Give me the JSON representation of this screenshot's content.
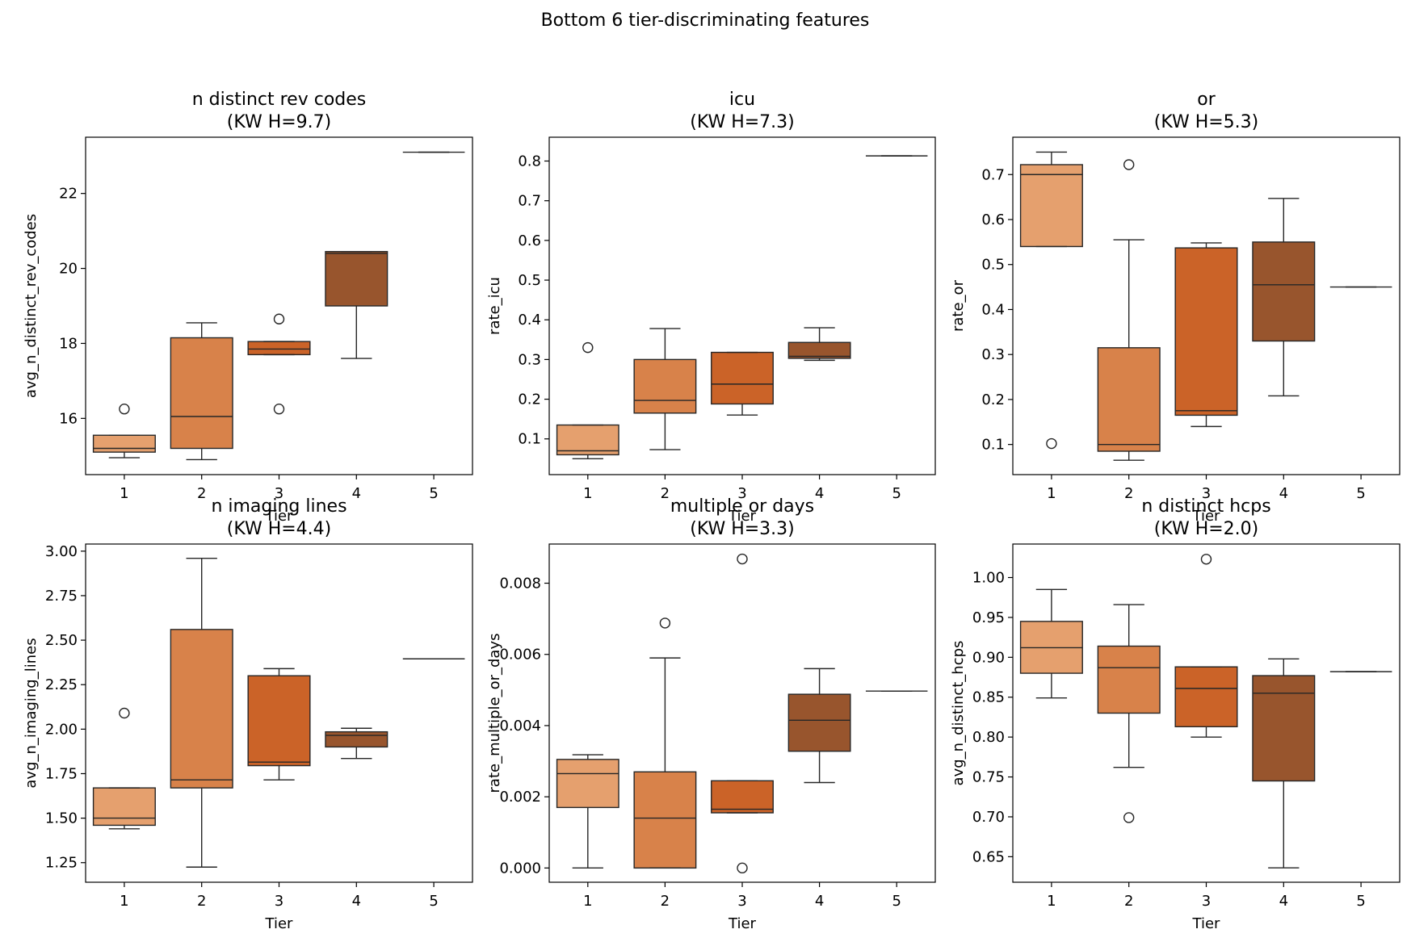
{
  "figure": {
    "suptitle": "Bottom 6 tier-discriminating features"
  },
  "colors": {
    "tiers": [
      "#e5a06e",
      "#d8824a",
      "#cb6328",
      "#98552d",
      "#98552d"
    ],
    "edge": "#262626"
  },
  "chart_data": [
    {
      "type": "box",
      "title_line1": "n distinct rev codes",
      "title_line2": "(KW H=9.7)",
      "xlabel": "Tier",
      "ylabel": "avg_n_distinct_rev_codes",
      "categories": [
        "1",
        "2",
        "3",
        "4",
        "5"
      ],
      "ylim": [
        14.5,
        23.5
      ],
      "yticks": [
        16,
        18,
        20,
        22
      ],
      "ytick_labels": [
        "16",
        "18",
        "20",
        "22"
      ],
      "boxes": [
        {
          "q1": 15.1,
          "median": 15.2,
          "q3": 15.55,
          "whislo": 14.95,
          "whishi": 15.55,
          "fliers": [
            16.25
          ]
        },
        {
          "q1": 15.2,
          "median": 16.05,
          "q3": 18.15,
          "whislo": 14.9,
          "whishi": 18.55,
          "fliers": []
        },
        {
          "q1": 17.7,
          "median": 17.85,
          "q3": 18.05,
          "whislo": 17.7,
          "whishi": 18.05,
          "fliers": [
            18.65,
            16.25
          ]
        },
        {
          "q1": 19.0,
          "median": 20.4,
          "q3": 20.45,
          "whislo": 17.6,
          "whishi": 20.45,
          "fliers": []
        },
        {
          "q1": 23.1,
          "median": 23.1,
          "q3": 23.1,
          "whislo": 23.1,
          "whishi": 23.1,
          "fliers": []
        }
      ]
    },
    {
      "type": "box",
      "title_line1": "icu",
      "title_line2": "(KW H=7.3)",
      "xlabel": "Tier",
      "ylabel": "rate_icu",
      "categories": [
        "1",
        "2",
        "3",
        "4",
        "5"
      ],
      "ylim": [
        0.01,
        0.86
      ],
      "yticks": [
        0.1,
        0.2,
        0.3,
        0.4,
        0.5,
        0.6,
        0.7,
        0.8
      ],
      "ytick_labels": [
        "0.1",
        "0.2",
        "0.3",
        "0.4",
        "0.5",
        "0.6",
        "0.7",
        "0.8"
      ],
      "boxes": [
        {
          "q1": 0.06,
          "median": 0.07,
          "q3": 0.135,
          "whislo": 0.05,
          "whishi": 0.135,
          "fliers": [
            0.33
          ]
        },
        {
          "q1": 0.165,
          "median": 0.197,
          "q3": 0.3,
          "whislo": 0.073,
          "whishi": 0.378,
          "fliers": []
        },
        {
          "q1": 0.188,
          "median": 0.238,
          "q3": 0.318,
          "whislo": 0.16,
          "whishi": 0.318,
          "fliers": []
        },
        {
          "q1": 0.303,
          "median": 0.308,
          "q3": 0.343,
          "whislo": 0.298,
          "whishi": 0.38,
          "fliers": []
        },
        {
          "q1": 0.813,
          "median": 0.813,
          "q3": 0.813,
          "whislo": 0.813,
          "whishi": 0.813,
          "fliers": []
        }
      ]
    },
    {
      "type": "box",
      "title_line1": "or",
      "title_line2": "(KW H=5.3)",
      "xlabel": "Tier",
      "ylabel": "rate_or",
      "categories": [
        "1",
        "2",
        "3",
        "4",
        "5"
      ],
      "ylim": [
        0.033,
        0.783
      ],
      "yticks": [
        0.1,
        0.2,
        0.3,
        0.4,
        0.5,
        0.6,
        0.7
      ],
      "ytick_labels": [
        "0.1",
        "0.2",
        "0.3",
        "0.4",
        "0.5",
        "0.6",
        "0.7"
      ],
      "boxes": [
        {
          "q1": 0.54,
          "median": 0.7,
          "q3": 0.722,
          "whislo": 0.54,
          "whishi": 0.75,
          "fliers": [
            0.102
          ]
        },
        {
          "q1": 0.085,
          "median": 0.1,
          "q3": 0.315,
          "whislo": 0.065,
          "whishi": 0.555,
          "fliers": [
            0.722
          ]
        },
        {
          "q1": 0.165,
          "median": 0.175,
          "q3": 0.537,
          "whislo": 0.14,
          "whishi": 0.548,
          "fliers": []
        },
        {
          "q1": 0.33,
          "median": 0.455,
          "q3": 0.55,
          "whislo": 0.208,
          "whishi": 0.647,
          "fliers": []
        },
        {
          "q1": 0.45,
          "median": 0.45,
          "q3": 0.45,
          "whislo": 0.45,
          "whishi": 0.45,
          "fliers": []
        }
      ]
    },
    {
      "type": "box",
      "title_line1": "n imaging lines",
      "title_line2": "(KW H=4.4)",
      "xlabel": "Tier",
      "ylabel": "avg_n_imaging_lines",
      "categories": [
        "1",
        "2",
        "3",
        "4",
        "5"
      ],
      "ylim": [
        1.14,
        3.04
      ],
      "yticks": [
        1.25,
        1.5,
        1.75,
        2.0,
        2.25,
        2.5,
        2.75,
        3.0
      ],
      "ytick_labels": [
        "1.25",
        "1.50",
        "1.75",
        "2.00",
        "2.25",
        "2.50",
        "2.75",
        "3.00"
      ],
      "boxes": [
        {
          "q1": 1.46,
          "median": 1.5,
          "q3": 1.67,
          "whislo": 1.44,
          "whishi": 1.67,
          "fliers": [
            2.09
          ]
        },
        {
          "q1": 1.67,
          "median": 1.715,
          "q3": 2.56,
          "whislo": 1.225,
          "whishi": 2.96,
          "fliers": []
        },
        {
          "q1": 1.795,
          "median": 1.815,
          "q3": 2.3,
          "whislo": 1.715,
          "whishi": 2.34,
          "fliers": []
        },
        {
          "q1": 1.9,
          "median": 1.965,
          "q3": 1.985,
          "whislo": 1.835,
          "whishi": 2.005,
          "fliers": []
        },
        {
          "q1": 2.395,
          "median": 2.395,
          "q3": 2.395,
          "whislo": 2.395,
          "whishi": 2.395,
          "fliers": []
        }
      ]
    },
    {
      "type": "box",
      "title_line1": "multiple or days",
      "title_line2": "(KW H=3.3)",
      "xlabel": "Tier",
      "ylabel": "rate_multiple_or_days",
      "categories": [
        "1",
        "2",
        "3",
        "4",
        "5"
      ],
      "ylim": [
        -0.0004,
        0.0091
      ],
      "yticks": [
        0.0,
        0.002,
        0.004,
        0.006,
        0.008
      ],
      "ytick_labels": [
        "0.000",
        "0.002",
        "0.004",
        "0.006",
        "0.008"
      ],
      "boxes": [
        {
          "q1": 0.0017,
          "median": 0.00265,
          "q3": 0.00305,
          "whislo": 0.0,
          "whishi": 0.00318,
          "fliers": []
        },
        {
          "q1": 0.0,
          "median": 0.0014,
          "q3": 0.0027,
          "whislo": 0.0,
          "whishi": 0.0059,
          "fliers": [
            0.00688
          ]
        },
        {
          "q1": 0.00155,
          "median": 0.00165,
          "q3": 0.00245,
          "whislo": 0.00155,
          "whishi": 0.00245,
          "fliers": [
            0.00868,
            0.0
          ]
        },
        {
          "q1": 0.00328,
          "median": 0.00415,
          "q3": 0.00488,
          "whislo": 0.0024,
          "whishi": 0.0056,
          "fliers": []
        },
        {
          "q1": 0.00497,
          "median": 0.00497,
          "q3": 0.00497,
          "whislo": 0.00497,
          "whishi": 0.00497,
          "fliers": []
        }
      ]
    },
    {
      "type": "box",
      "title_line1": "n distinct hcps",
      "title_line2": "(KW H=2.0)",
      "xlabel": "Tier",
      "ylabel": "avg_n_distinct_hcps",
      "categories": [
        "1",
        "2",
        "3",
        "4",
        "5"
      ],
      "ylim": [
        0.618,
        1.042
      ],
      "yticks": [
        0.65,
        0.7,
        0.75,
        0.8,
        0.85,
        0.9,
        0.95,
        1.0
      ],
      "ytick_labels": [
        "0.65",
        "0.70",
        "0.75",
        "0.80",
        "0.85",
        "0.90",
        "0.95",
        "1.00"
      ],
      "boxes": [
        {
          "q1": 0.88,
          "median": 0.912,
          "q3": 0.945,
          "whislo": 0.849,
          "whishi": 0.985,
          "fliers": []
        },
        {
          "q1": 0.83,
          "median": 0.887,
          "q3": 0.914,
          "whislo": 0.762,
          "whishi": 0.966,
          "fliers": [
            0.699
          ]
        },
        {
          "q1": 0.813,
          "median": 0.861,
          "q3": 0.888,
          "whislo": 0.8,
          "whishi": 0.888,
          "fliers": [
            1.023
          ]
        },
        {
          "q1": 0.745,
          "median": 0.855,
          "q3": 0.877,
          "whislo": 0.636,
          "whishi": 0.898,
          "fliers": []
        },
        {
          "q1": 0.882,
          "median": 0.882,
          "q3": 0.882,
          "whislo": 0.882,
          "whishi": 0.882,
          "fliers": []
        }
      ]
    }
  ]
}
